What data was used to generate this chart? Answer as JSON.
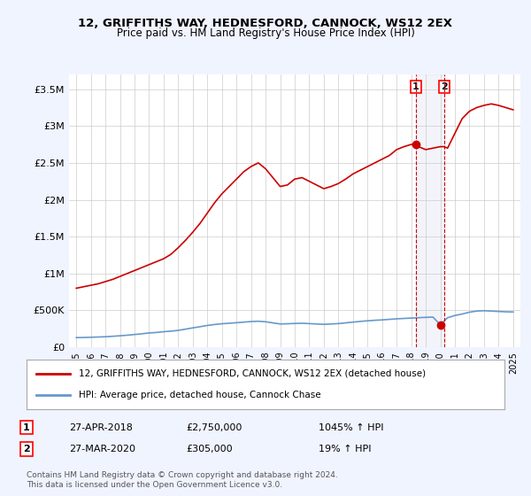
{
  "title": "12, GRIFFITHS WAY, HEDNESFORD, CANNOCK, WS12 2EX",
  "subtitle": "Price paid vs. HM Land Registry's House Price Index (HPI)",
  "legend_line1": "12, GRIFFITHS WAY, HEDNESFORD, CANNOCK, WS12 2EX (detached house)",
  "legend_line2": "HPI: Average price, detached house, Cannock Chase",
  "footnote": "Contains HM Land Registry data © Crown copyright and database right 2024.\nThis data is licensed under the Open Government Licence v3.0.",
  "marker1_date": "27-APR-2018",
  "marker1_price": "£2,750,000",
  "marker1_hpi": "1045% ↑ HPI",
  "marker1_year": 2018.33,
  "marker2_date": "27-MAR-2020",
  "marker2_price": "£305,000",
  "marker2_hpi": "19% ↑ HPI",
  "marker2_year": 2020.25,
  "red_line_color": "#cc0000",
  "blue_line_color": "#6699cc",
  "background_color": "#f0f4ff",
  "plot_bg_color": "#ffffff",
  "ylim": [
    0,
    3700000
  ],
  "xlim_start": 1994.5,
  "xlim_end": 2025.5,
  "red_x": [
    1995,
    1995.5,
    1996,
    1996.5,
    1997,
    1997.5,
    1998,
    1998.5,
    1999,
    1999.5,
    2000,
    2000.5,
    2001,
    2001.5,
    2002,
    2002.5,
    2003,
    2003.5,
    2004,
    2004.5,
    2005,
    2005.5,
    2006,
    2006.5,
    2007,
    2007.5,
    2008,
    2008.5,
    2009,
    2009.5,
    2010,
    2010.5,
    2011,
    2011.5,
    2012,
    2012.5,
    2013,
    2013.5,
    2014,
    2014.5,
    2015,
    2015.5,
    2016,
    2016.5,
    2017,
    2017.5,
    2018,
    2018.33,
    2018.5,
    2019,
    2019.5,
    2020,
    2020.25,
    2020.5,
    2021,
    2021.5,
    2022,
    2022.5,
    2023,
    2023.5,
    2024,
    2024.5,
    2025
  ],
  "red_y": [
    800000,
    820000,
    840000,
    860000,
    890000,
    920000,
    960000,
    1000000,
    1040000,
    1080000,
    1120000,
    1160000,
    1200000,
    1260000,
    1350000,
    1450000,
    1560000,
    1680000,
    1820000,
    1960000,
    2080000,
    2180000,
    2280000,
    2380000,
    2450000,
    2500000,
    2420000,
    2300000,
    2180000,
    2200000,
    2280000,
    2300000,
    2250000,
    2200000,
    2150000,
    2180000,
    2220000,
    2280000,
    2350000,
    2400000,
    2450000,
    2500000,
    2550000,
    2600000,
    2680000,
    2720000,
    2750000,
    2750000,
    2720000,
    2680000,
    2700000,
    2720000,
    2720000,
    2700000,
    2900000,
    3100000,
    3200000,
    3250000,
    3280000,
    3300000,
    3280000,
    3250000,
    3220000
  ],
  "blue_x": [
    1995,
    1995.5,
    1996,
    1996.5,
    1997,
    1997.5,
    1998,
    1998.5,
    1999,
    1999.5,
    2000,
    2000.5,
    2001,
    2001.5,
    2002,
    2002.5,
    2003,
    2003.5,
    2004,
    2004.5,
    2005,
    2005.5,
    2006,
    2006.5,
    2007,
    2007.5,
    2008,
    2008.5,
    2009,
    2009.5,
    2010,
    2010.5,
    2011,
    2011.5,
    2012,
    2012.5,
    2013,
    2013.5,
    2014,
    2014.5,
    2015,
    2015.5,
    2016,
    2016.5,
    2017,
    2017.5,
    2018,
    2018.5,
    2019,
    2019.5,
    2020,
    2020.5,
    2021,
    2021.5,
    2022,
    2022.5,
    2023,
    2023.5,
    2024,
    2024.5,
    2025
  ],
  "blue_y": [
    130000,
    132000,
    135000,
    138000,
    142000,
    148000,
    155000,
    163000,
    172000,
    182000,
    193000,
    200000,
    210000,
    218000,
    228000,
    245000,
    262000,
    278000,
    295000,
    308000,
    318000,
    325000,
    332000,
    340000,
    348000,
    352000,
    345000,
    330000,
    315000,
    318000,
    322000,
    325000,
    320000,
    315000,
    310000,
    315000,
    320000,
    330000,
    340000,
    350000,
    358000,
    365000,
    370000,
    378000,
    385000,
    390000,
    395000,
    400000,
    405000,
    408000,
    305000,
    400000,
    430000,
    450000,
    475000,
    490000,
    495000,
    490000,
    485000,
    480000,
    478000
  ],
  "yticks": [
    0,
    500000,
    1000000,
    1500000,
    2000000,
    2500000,
    3000000,
    3500000
  ],
  "ytick_labels": [
    "£0",
    "£500K",
    "£1M",
    "£1.5M",
    "£2M",
    "£2.5M",
    "£3M",
    "£3.5M"
  ],
  "xticks": [
    1995,
    1996,
    1997,
    1998,
    1999,
    2000,
    2001,
    2002,
    2003,
    2004,
    2005,
    2006,
    2007,
    2008,
    2009,
    2010,
    2011,
    2012,
    2013,
    2014,
    2015,
    2016,
    2017,
    2018,
    2019,
    2020,
    2021,
    2022,
    2023,
    2024,
    2025
  ]
}
